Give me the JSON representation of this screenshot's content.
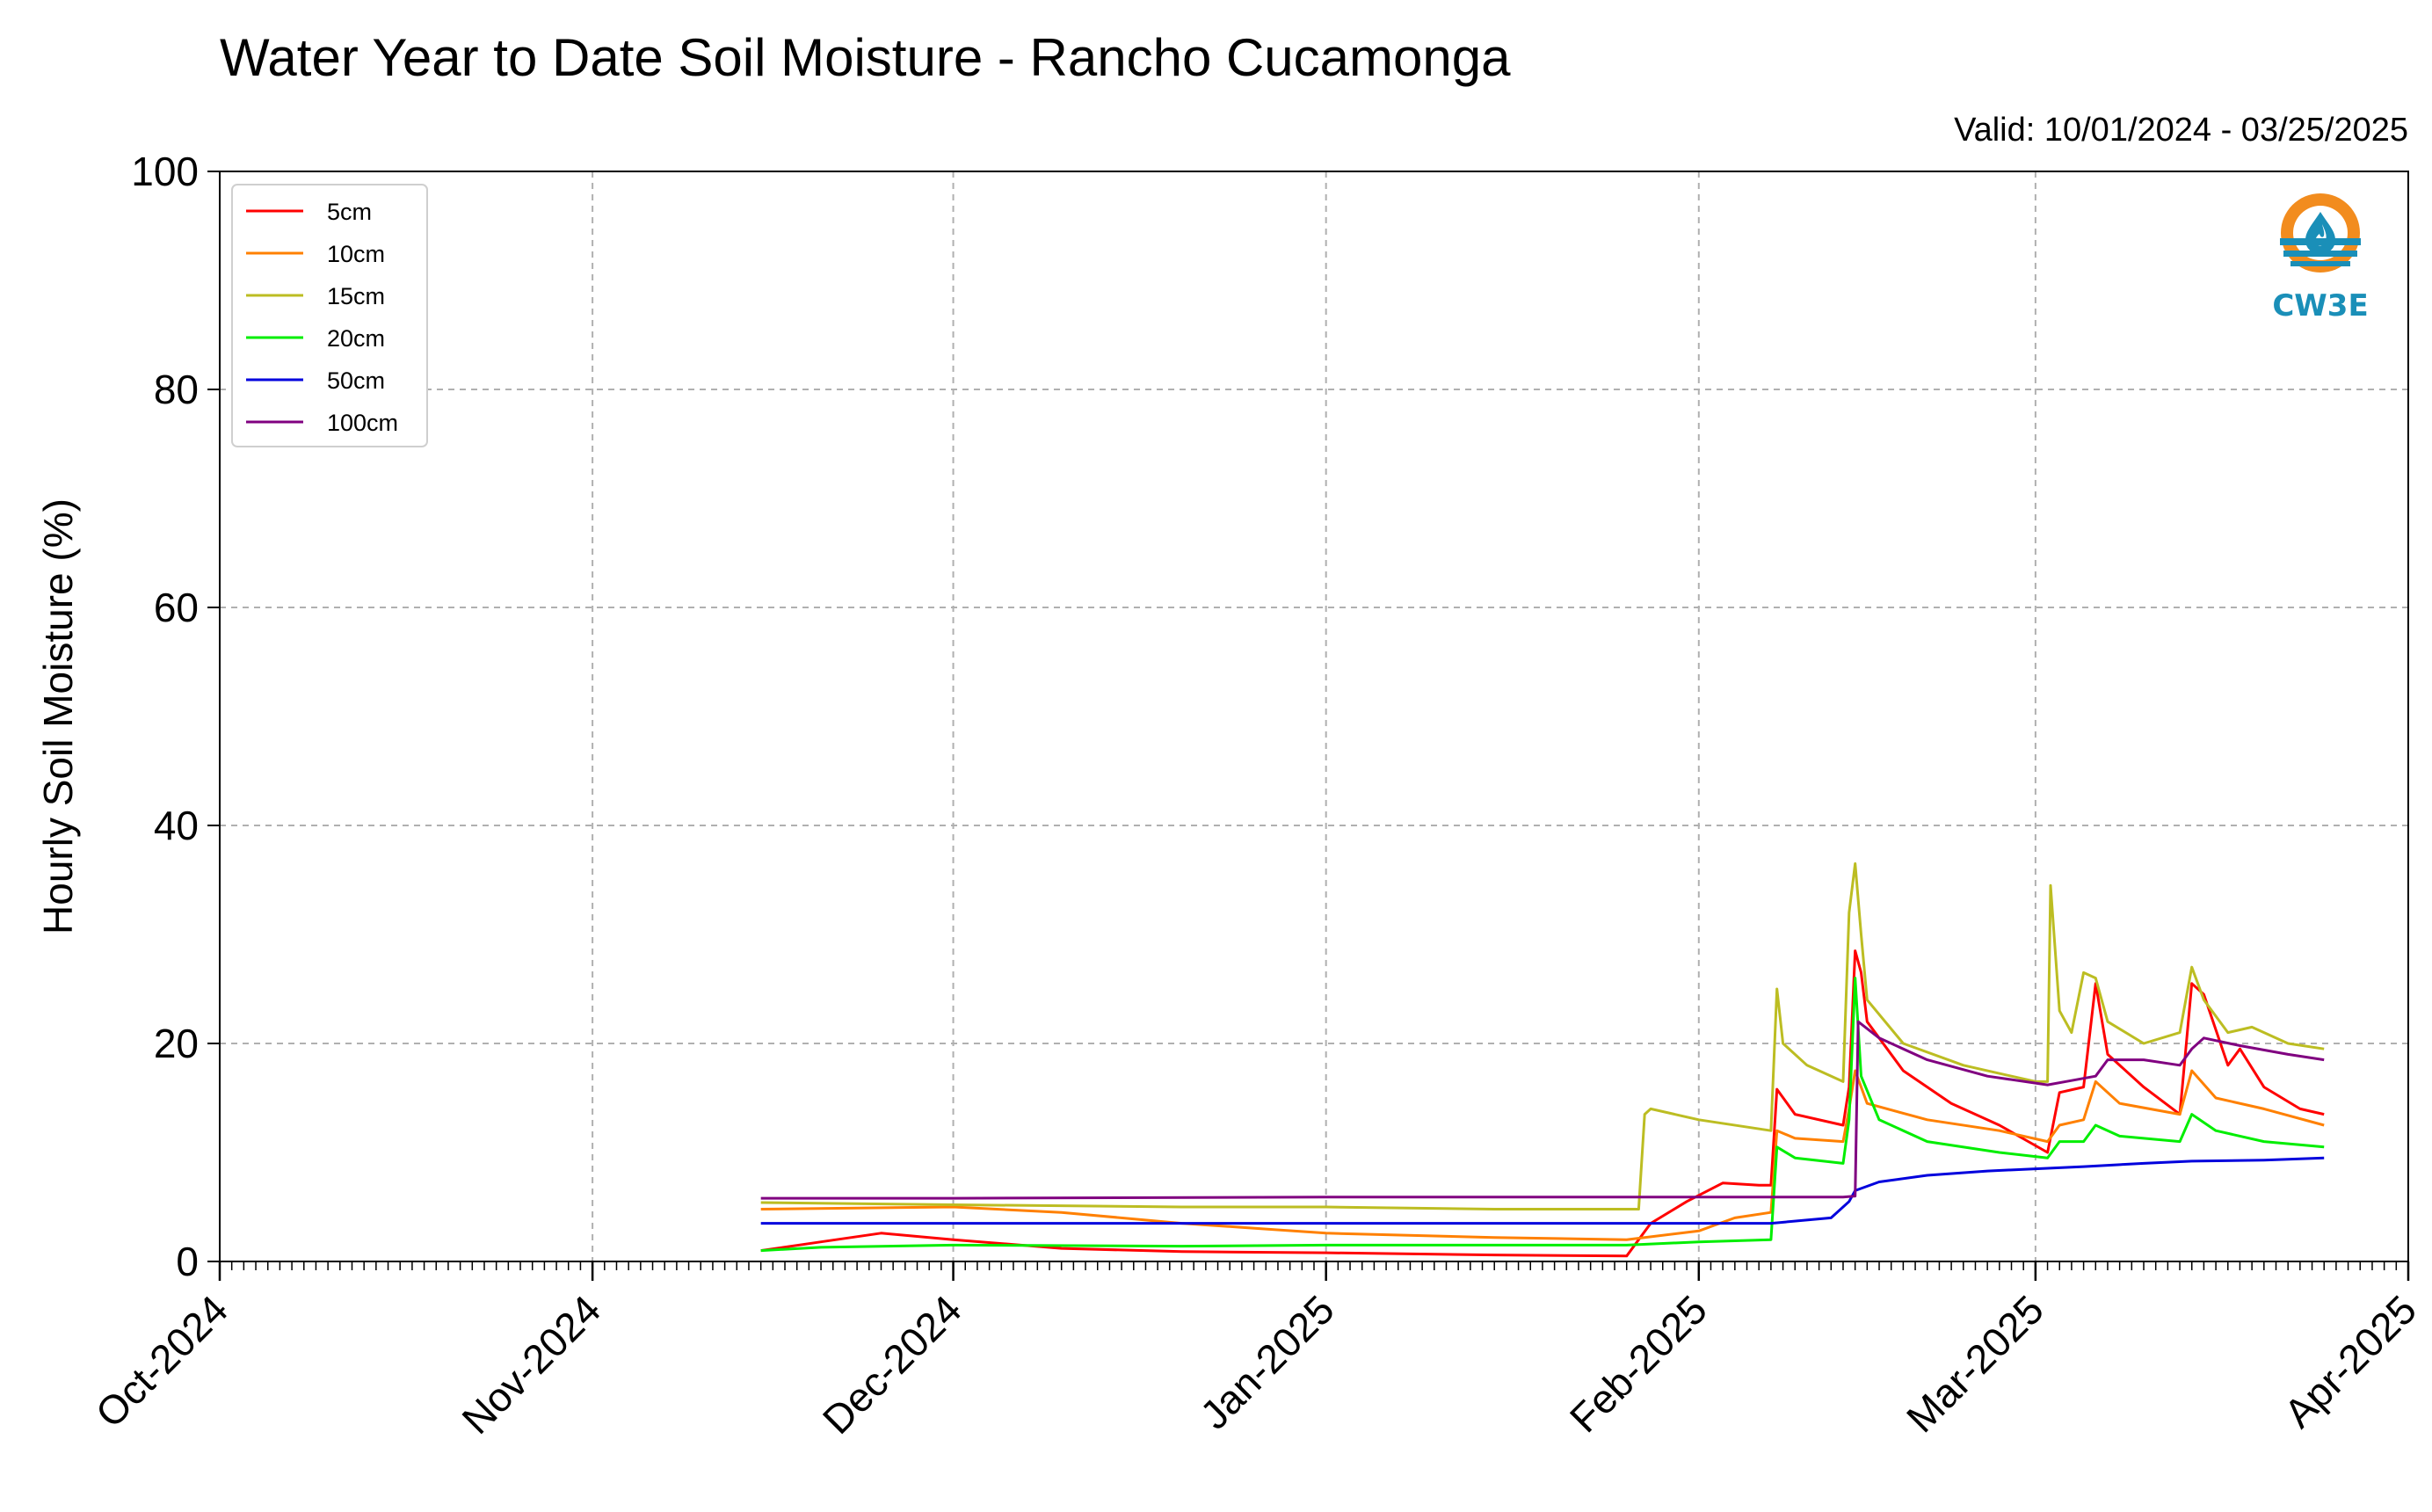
{
  "chart_data": {
    "type": "line",
    "title": "Water Year to Date Soil Moisture - Rancho Cucamonga",
    "valid_label": "Valid: 10/01/2024 - 03/25/2025",
    "xlabel": "",
    "ylabel": "Hourly Soil Moisture (%)",
    "xlim": [
      "2024-10-01",
      "2025-04-01"
    ],
    "ylim": [
      0,
      100
    ],
    "y_ticks": [
      "0",
      "20",
      "40",
      "60",
      "80",
      "100"
    ],
    "x_ticks": [
      {
        "date": "2024-10-01",
        "label": "Oct-2024"
      },
      {
        "date": "2024-11-01",
        "label": "Nov-2024"
      },
      {
        "date": "2024-12-01",
        "label": "Dec-2024"
      },
      {
        "date": "2025-01-01",
        "label": "Jan-2025"
      },
      {
        "date": "2025-02-01",
        "label": "Feb-2025"
      },
      {
        "date": "2025-03-01",
        "label": "Mar-2025"
      },
      {
        "date": "2025-04-01",
        "label": "Apr-2025"
      }
    ],
    "grid": true,
    "legend_position": "top-left",
    "series": [
      {
        "name": "5cm",
        "color": "#ff0000",
        "points": [
          [
            "2024-11-15",
            1.0
          ],
          [
            "2024-11-20",
            1.8
          ],
          [
            "2024-11-25",
            2.6
          ],
          [
            "2024-12-01",
            2.0
          ],
          [
            "2024-12-10",
            1.2
          ],
          [
            "2024-12-20",
            0.9
          ],
          [
            "2025-01-01",
            0.8
          ],
          [
            "2025-01-15",
            0.6
          ],
          [
            "2025-01-26",
            0.5
          ],
          [
            "2025-01-28",
            3.5
          ],
          [
            "2025-01-31",
            5.5
          ],
          [
            "2025-02-03",
            7.2
          ],
          [
            "2025-02-06",
            7.0
          ],
          [
            "2025-02-07",
            7.0
          ],
          [
            "2025-02-07 12:00",
            15.8
          ],
          [
            "2025-02-09",
            13.5
          ],
          [
            "2025-02-13",
            12.5
          ],
          [
            "2025-02-13 12:00",
            16.0
          ],
          [
            "2025-02-14",
            28.5
          ],
          [
            "2025-02-14 12:00",
            26.5
          ],
          [
            "2025-02-15",
            22.0
          ],
          [
            "2025-02-18",
            17.5
          ],
          [
            "2025-02-22",
            14.5
          ],
          [
            "2025-02-26",
            12.5
          ],
          [
            "2025-03-02",
            10.0
          ],
          [
            "2025-03-03",
            15.5
          ],
          [
            "2025-03-05",
            16.0
          ],
          [
            "2025-03-06",
            25.5
          ],
          [
            "2025-03-07",
            19.0
          ],
          [
            "2025-03-10",
            16.0
          ],
          [
            "2025-03-13",
            13.5
          ],
          [
            "2025-03-14",
            25.5
          ],
          [
            "2025-03-15",
            24.5
          ],
          [
            "2025-03-17",
            18.0
          ],
          [
            "2025-03-18",
            19.5
          ],
          [
            "2025-03-20",
            16.0
          ],
          [
            "2025-03-23",
            14.0
          ],
          [
            "2025-03-25",
            13.5
          ]
        ]
      },
      {
        "name": "10cm",
        "color": "#ff8000",
        "points": [
          [
            "2024-11-15",
            4.8
          ],
          [
            "2024-12-01",
            5.0
          ],
          [
            "2024-12-10",
            4.5
          ],
          [
            "2024-12-20",
            3.5
          ],
          [
            "2025-01-01",
            2.6
          ],
          [
            "2025-01-15",
            2.2
          ],
          [
            "2025-01-26",
            2.0
          ],
          [
            "2025-02-01",
            2.8
          ],
          [
            "2025-02-04",
            4.0
          ],
          [
            "2025-02-07",
            4.5
          ],
          [
            "2025-02-07 12:00",
            12.0
          ],
          [
            "2025-02-09",
            11.3
          ],
          [
            "2025-02-13",
            11.0
          ],
          [
            "2025-02-13 12:00",
            14.0
          ],
          [
            "2025-02-14",
            17.5
          ],
          [
            "2025-02-15",
            14.5
          ],
          [
            "2025-02-20",
            13.0
          ],
          [
            "2025-02-26",
            12.0
          ],
          [
            "2025-03-02",
            11.0
          ],
          [
            "2025-03-03",
            12.5
          ],
          [
            "2025-03-05",
            13.0
          ],
          [
            "2025-03-06",
            16.5
          ],
          [
            "2025-03-08",
            14.5
          ],
          [
            "2025-03-13",
            13.5
          ],
          [
            "2025-03-14",
            17.5
          ],
          [
            "2025-03-16",
            15.0
          ],
          [
            "2025-03-20",
            14.0
          ],
          [
            "2025-03-25",
            12.5
          ]
        ]
      },
      {
        "name": "15cm",
        "color": "#bcbd22",
        "points": [
          [
            "2024-11-15",
            5.4
          ],
          [
            "2024-12-01",
            5.2
          ],
          [
            "2024-12-20",
            5.0
          ],
          [
            "2025-01-01",
            5.0
          ],
          [
            "2025-01-15",
            4.8
          ],
          [
            "2025-01-27",
            4.8
          ],
          [
            "2025-01-27 12:00",
            13.5
          ],
          [
            "2025-01-28",
            14.0
          ],
          [
            "2025-02-01",
            13.0
          ],
          [
            "2025-02-07",
            12.0
          ],
          [
            "2025-02-07 12:00",
            25.0
          ],
          [
            "2025-02-08",
            20.0
          ],
          [
            "2025-02-10",
            18.0
          ],
          [
            "2025-02-13",
            16.5
          ],
          [
            "2025-02-13 12:00",
            32.0
          ],
          [
            "2025-02-14",
            36.5
          ],
          [
            "2025-02-14 12:00",
            30.0
          ],
          [
            "2025-02-15",
            24.0
          ],
          [
            "2025-02-18",
            20.0
          ],
          [
            "2025-02-23",
            18.0
          ],
          [
            "2025-03-01",
            16.5
          ],
          [
            "2025-03-02",
            16.5
          ],
          [
            "2025-03-02 06:00",
            34.5
          ],
          [
            "2025-03-03",
            23.0
          ],
          [
            "2025-03-04",
            21.0
          ],
          [
            "2025-03-05",
            26.5
          ],
          [
            "2025-03-06",
            26.0
          ],
          [
            "2025-03-07",
            22.0
          ],
          [
            "2025-03-10",
            20.0
          ],
          [
            "2025-03-13",
            21.0
          ],
          [
            "2025-03-14",
            27.0
          ],
          [
            "2025-03-15",
            24.0
          ],
          [
            "2025-03-17",
            21.0
          ],
          [
            "2025-03-19",
            21.5
          ],
          [
            "2025-03-22",
            20.0
          ],
          [
            "2025-03-25",
            19.5
          ]
        ]
      },
      {
        "name": "20cm",
        "color": "#00ee00",
        "points": [
          [
            "2024-11-15",
            1.0
          ],
          [
            "2024-11-20",
            1.3
          ],
          [
            "2024-12-01",
            1.5
          ],
          [
            "2024-12-20",
            1.4
          ],
          [
            "2025-01-01",
            1.5
          ],
          [
            "2025-01-15",
            1.5
          ],
          [
            "2025-01-26",
            1.5
          ],
          [
            "2025-02-01",
            1.8
          ],
          [
            "2025-02-07",
            2.0
          ],
          [
            "2025-02-07 12:00",
            10.5
          ],
          [
            "2025-02-09",
            9.5
          ],
          [
            "2025-02-13",
            9.0
          ],
          [
            "2025-02-13 12:00",
            13.0
          ],
          [
            "2025-02-14",
            26.0
          ],
          [
            "2025-02-14 12:00",
            17.0
          ],
          [
            "2025-02-16",
            13.0
          ],
          [
            "2025-02-20",
            11.0
          ],
          [
            "2025-02-26",
            10.0
          ],
          [
            "2025-03-02",
            9.5
          ],
          [
            "2025-03-03",
            11.0
          ],
          [
            "2025-03-05",
            11.0
          ],
          [
            "2025-03-06",
            12.5
          ],
          [
            "2025-03-08",
            11.5
          ],
          [
            "2025-03-13",
            11.0
          ],
          [
            "2025-03-14",
            13.5
          ],
          [
            "2025-03-16",
            12.0
          ],
          [
            "2025-03-20",
            11.0
          ],
          [
            "2025-03-25",
            10.5
          ]
        ]
      },
      {
        "name": "50cm",
        "color": "#0000dd",
        "points": [
          [
            "2024-11-15",
            3.5
          ],
          [
            "2024-12-01",
            3.5
          ],
          [
            "2025-01-01",
            3.5
          ],
          [
            "2025-02-01",
            3.5
          ],
          [
            "2025-02-07",
            3.5
          ],
          [
            "2025-02-12",
            4.0
          ],
          [
            "2025-02-13 12:00",
            5.5
          ],
          [
            "2025-02-14",
            6.5
          ],
          [
            "2025-02-16",
            7.3
          ],
          [
            "2025-02-20",
            7.9
          ],
          [
            "2025-02-25",
            8.3
          ],
          [
            "2025-03-01",
            8.5
          ],
          [
            "2025-03-05",
            8.7
          ],
          [
            "2025-03-10",
            9.0
          ],
          [
            "2025-03-14",
            9.2
          ],
          [
            "2025-03-20",
            9.3
          ],
          [
            "2025-03-25",
            9.5
          ]
        ]
      },
      {
        "name": "100cm",
        "color": "#800080",
        "points": [
          [
            "2024-11-15",
            5.8
          ],
          [
            "2024-12-01",
            5.8
          ],
          [
            "2025-01-01",
            5.9
          ],
          [
            "2025-02-01",
            5.9
          ],
          [
            "2025-02-13",
            5.9
          ],
          [
            "2025-02-14",
            6.0
          ],
          [
            "2025-02-14 06:00",
            22.0
          ],
          [
            "2025-02-16",
            20.5
          ],
          [
            "2025-02-20",
            18.5
          ],
          [
            "2025-02-25",
            17.0
          ],
          [
            "2025-03-02",
            16.2
          ],
          [
            "2025-03-04",
            16.6
          ],
          [
            "2025-03-06",
            17.0
          ],
          [
            "2025-03-07",
            18.5
          ],
          [
            "2025-03-10",
            18.5
          ],
          [
            "2025-03-13",
            18.0
          ],
          [
            "2025-03-14",
            19.5
          ],
          [
            "2025-03-15",
            20.5
          ],
          [
            "2025-03-18",
            19.8
          ],
          [
            "2025-03-22",
            19.0
          ],
          [
            "2025-03-25",
            18.5
          ]
        ]
      }
    ]
  },
  "logo": {
    "text": "CW3E",
    "ring_color": "#f28c1e",
    "accent_color": "#1a8fb8"
  }
}
